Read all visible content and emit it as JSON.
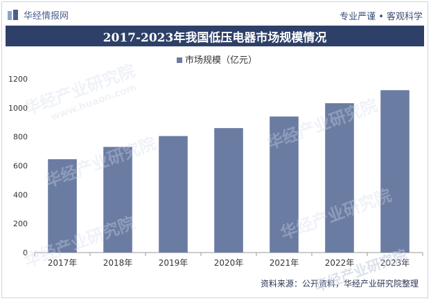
{
  "header": {
    "site_name": "华经情报网",
    "slogan": "专业严谨 • 客观科学"
  },
  "chart_data": {
    "type": "bar",
    "title": "2017-2023年我国低压电器市场规模情况",
    "categories": [
      "2017年",
      "2018年",
      "2019年",
      "2020年",
      "2021年",
      "2022年",
      "2023年"
    ],
    "series": [
      {
        "name": "市场规模（亿元）",
        "values": [
          645,
          730,
          805,
          860,
          940,
          1032,
          1122
        ],
        "color": "#6b7ca3"
      }
    ],
    "yticks": [
      0,
      200,
      400,
      600,
      800,
      1000,
      1200
    ],
    "ylim": [
      0,
      1200
    ],
    "grid": false,
    "legend_position": "top-center"
  },
  "footer": {
    "source": "资料来源：公开资料，华经产业研究院整理"
  },
  "watermark": {
    "brand": "华经产业研究院",
    "url": "www.huaon.com"
  },
  "colors": {
    "title_bg": "#2e4068",
    "bar": "#6b7ca3",
    "border": "#c9d3e3"
  }
}
